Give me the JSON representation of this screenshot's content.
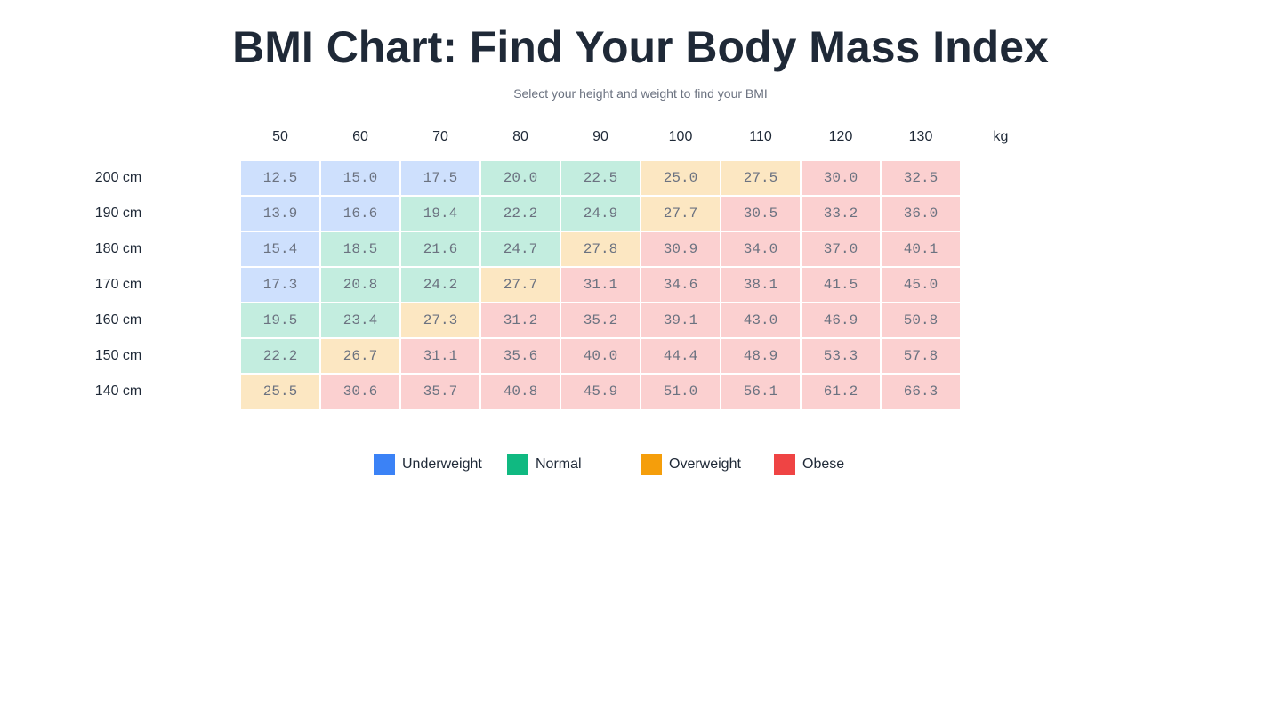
{
  "header": {
    "title": "BMI Chart: Find Your Body Mass Index",
    "subtitle": "Select your height and weight to find your BMI"
  },
  "table": {
    "columns": [
      "50",
      "60",
      "70",
      "80",
      "90",
      "100",
      "110",
      "120",
      "130"
    ],
    "unit": "kg",
    "rows": [
      {
        "label": "200 cm",
        "cells": [
          {
            "text": "12.5",
            "band": "Underweight"
          },
          {
            "text": "15.0",
            "band": "Underweight"
          },
          {
            "text": "17.5",
            "band": "Underweight"
          },
          {
            "text": "20.0",
            "band": "Normal"
          },
          {
            "text": "22.5",
            "band": "Normal"
          },
          {
            "text": "25.0",
            "band": "Overweight"
          },
          {
            "text": "27.5",
            "band": "Overweight"
          },
          {
            "text": "30.0",
            "band": "Obese"
          },
          {
            "text": "32.5",
            "band": "Obese"
          }
        ]
      },
      {
        "label": "190 cm",
        "cells": [
          {
            "text": "13.9",
            "band": "Underweight"
          },
          {
            "text": "16.6",
            "band": "Underweight"
          },
          {
            "text": "19.4",
            "band": "Normal"
          },
          {
            "text": "22.2",
            "band": "Normal"
          },
          {
            "text": "24.9",
            "band": "Normal"
          },
          {
            "text": "27.7",
            "band": "Overweight"
          },
          {
            "text": "30.5",
            "band": "Obese"
          },
          {
            "text": "33.2",
            "band": "Obese"
          },
          {
            "text": "36.0",
            "band": "Obese"
          }
        ]
      },
      {
        "label": "180 cm",
        "cells": [
          {
            "text": "15.4",
            "band": "Underweight"
          },
          {
            "text": "18.5",
            "band": "Normal"
          },
          {
            "text": "21.6",
            "band": "Normal"
          },
          {
            "text": "24.7",
            "band": "Normal"
          },
          {
            "text": "27.8",
            "band": "Overweight"
          },
          {
            "text": "30.9",
            "band": "Obese"
          },
          {
            "text": "34.0",
            "band": "Obese"
          },
          {
            "text": "37.0",
            "band": "Obese"
          },
          {
            "text": "40.1",
            "band": "Obese"
          }
        ]
      },
      {
        "label": "170 cm",
        "cells": [
          {
            "text": "17.3",
            "band": "Underweight"
          },
          {
            "text": "20.8",
            "band": "Normal"
          },
          {
            "text": "24.2",
            "band": "Normal"
          },
          {
            "text": "27.7",
            "band": "Overweight"
          },
          {
            "text": "31.1",
            "band": "Obese"
          },
          {
            "text": "34.6",
            "band": "Obese"
          },
          {
            "text": "38.1",
            "band": "Obese"
          },
          {
            "text": "41.5",
            "band": "Obese"
          },
          {
            "text": "45.0",
            "band": "Obese"
          }
        ]
      },
      {
        "label": "160 cm",
        "cells": [
          {
            "text": "19.5",
            "band": "Normal"
          },
          {
            "text": "23.4",
            "band": "Normal"
          },
          {
            "text": "27.3",
            "band": "Overweight"
          },
          {
            "text": "31.2",
            "band": "Obese"
          },
          {
            "text": "35.2",
            "band": "Obese"
          },
          {
            "text": "39.1",
            "band": "Obese"
          },
          {
            "text": "43.0",
            "band": "Obese"
          },
          {
            "text": "46.9",
            "band": "Obese"
          },
          {
            "text": "50.8",
            "band": "Obese"
          }
        ]
      },
      {
        "label": "150 cm",
        "cells": [
          {
            "text": "22.2",
            "band": "Normal"
          },
          {
            "text": "26.7",
            "band": "Overweight"
          },
          {
            "text": "31.1",
            "band": "Obese"
          },
          {
            "text": "35.6",
            "band": "Obese"
          },
          {
            "text": "40.0",
            "band": "Obese"
          },
          {
            "text": "44.4",
            "band": "Obese"
          },
          {
            "text": "48.9",
            "band": "Obese"
          },
          {
            "text": "53.3",
            "band": "Obese"
          },
          {
            "text": "57.8",
            "band": "Obese"
          }
        ]
      },
      {
        "label": "140 cm",
        "cells": [
          {
            "text": "25.5",
            "band": "Overweight"
          },
          {
            "text": "30.6",
            "band": "Obese"
          },
          {
            "text": "35.7",
            "band": "Obese"
          },
          {
            "text": "40.8",
            "band": "Obese"
          },
          {
            "text": "45.9",
            "band": "Obese"
          },
          {
            "text": "51.0",
            "band": "Obese"
          },
          {
            "text": "56.1",
            "band": "Obese"
          },
          {
            "text": "61.2",
            "band": "Obese"
          },
          {
            "text": "66.3",
            "band": "Obese"
          }
        ]
      }
    ]
  },
  "legend": [
    {
      "name": "Underweight",
      "color": "#3b82f6"
    },
    {
      "name": "Normal",
      "color": "#10b981"
    },
    {
      "name": "Overweight",
      "color": "#f59e0b"
    },
    {
      "name": "Obese",
      "color": "#ef4444"
    }
  ]
}
